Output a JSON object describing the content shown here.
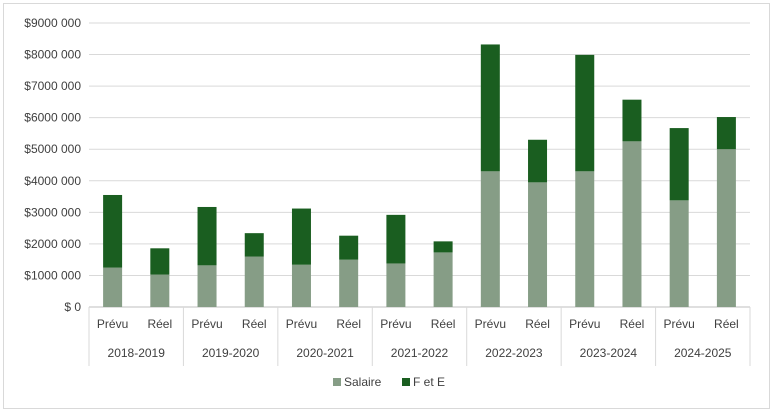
{
  "chart_data": {
    "type": "bar",
    "stacked": true,
    "groups": [
      "2018-2019",
      "2019-2020",
      "2020-2021",
      "2021-2022",
      "2022-2023",
      "2023-2024",
      "2024-2025"
    ],
    "subcategories": [
      "Prévu",
      "Réel"
    ],
    "series": [
      {
        "name": "Salaire",
        "color": "#869d86",
        "values": [
          1250000,
          1030000,
          1320000,
          1600000,
          1340000,
          1500000,
          1380000,
          1730000,
          4300000,
          3950000,
          4300000,
          5250000,
          3380000,
          5000000
        ]
      },
      {
        "name": "F et E",
        "color": "#1a5e20",
        "values": [
          2300000,
          830000,
          1850000,
          740000,
          1780000,
          760000,
          1540000,
          350000,
          4020000,
          1350000,
          3690000,
          1320000,
          2290000,
          1020000
        ]
      }
    ],
    "ylim": [
      0,
      9000000
    ],
    "yticks": [
      0,
      1000000,
      2000000,
      3000000,
      4000000,
      5000000,
      6000000,
      7000000,
      8000000,
      9000000
    ],
    "ytick_labels": [
      "$ 0",
      "$1000 000",
      "$2000 000",
      "$3000 000",
      "$4000 000",
      "$5000 000",
      "$6000 000",
      "$7000 000",
      "$8000 000",
      "$9000 000"
    ],
    "grid": true,
    "legend_position": "bottom",
    "title": "",
    "xlabel": "",
    "ylabel": ""
  }
}
